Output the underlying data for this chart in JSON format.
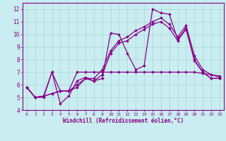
{
  "xlabel": "Windchill (Refroidissement éolien,°C)",
  "xlim": [
    -0.5,
    23.5
  ],
  "ylim": [
    4,
    12.5
  ],
  "yticks": [
    4,
    5,
    6,
    7,
    8,
    9,
    10,
    11,
    12
  ],
  "xticks": [
    0,
    1,
    2,
    3,
    4,
    5,
    6,
    7,
    8,
    9,
    10,
    11,
    12,
    13,
    14,
    15,
    16,
    17,
    18,
    19,
    20,
    21,
    22,
    23
  ],
  "bg_color": "#c9edf0",
  "grid_color": "#b0d8da",
  "line_color": "#880088",
  "series": [
    [
      5.8,
      5.0,
      5.0,
      7.0,
      4.5,
      5.1,
      6.3,
      6.6,
      6.3,
      6.5,
      10.1,
      10.0,
      8.5,
      7.2,
      7.5,
      12.0,
      11.7,
      11.6,
      9.6,
      10.5,
      7.9,
      7.0,
      6.5,
      6.5
    ],
    [
      5.8,
      5.0,
      5.1,
      7.0,
      5.5,
      5.5,
      7.0,
      7.0,
      7.0,
      7.0,
      7.0,
      7.0,
      7.0,
      7.0,
      7.0,
      7.0,
      7.0,
      7.0,
      7.0,
      7.0,
      7.0,
      6.9,
      6.8,
      6.6
    ],
    [
      5.8,
      5.0,
      5.1,
      5.3,
      5.5,
      5.5,
      5.8,
      6.5,
      6.3,
      6.8,
      8.5,
      9.3,
      9.5,
      10.0,
      10.4,
      10.8,
      11.0,
      10.5,
      9.5,
      10.4,
      8.0,
      7.0,
      6.5,
      6.5
    ],
    [
      5.8,
      5.0,
      5.1,
      5.3,
      5.5,
      5.5,
      6.0,
      6.5,
      6.5,
      7.2,
      8.7,
      9.5,
      9.8,
      10.3,
      10.6,
      11.0,
      11.3,
      10.8,
      9.8,
      10.7,
      8.3,
      7.2,
      6.8,
      6.7
    ]
  ]
}
